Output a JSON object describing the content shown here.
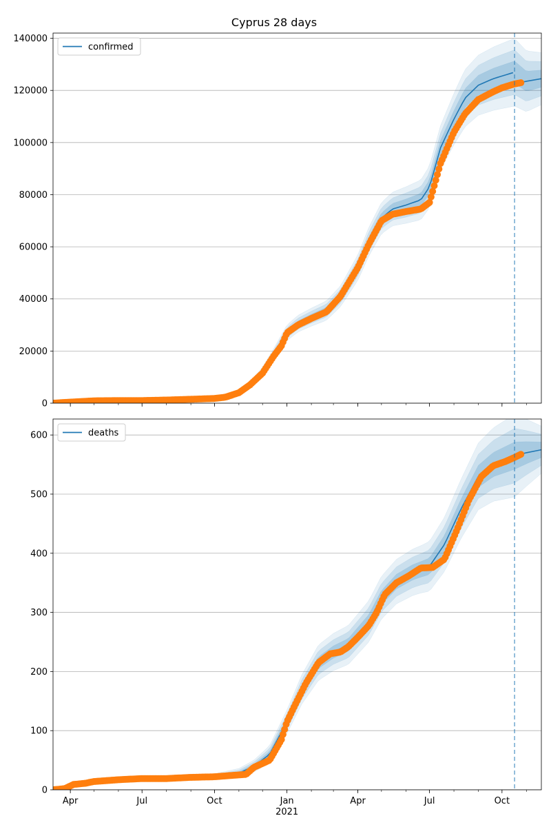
{
  "title": "Cyprus 28 days",
  "colors": {
    "model": "#1f77b4",
    "observed": "#ff7f0e",
    "band": "#1f77b4",
    "grid": "#b0b0b0"
  },
  "x_axis": {
    "start": "2020-03-10",
    "end": "2021-11-20",
    "forecast_start": "2021-10-17",
    "ticks": [
      {
        "date": "2020-04-01",
        "label": "Apr"
      },
      {
        "date": "2020-07-01",
        "label": "Jul"
      },
      {
        "date": "2020-10-01",
        "label": "Oct"
      },
      {
        "date": "2021-01-01",
        "label": "Jan"
      },
      {
        "date": "2021-04-01",
        "label": "Apr"
      },
      {
        "date": "2021-07-01",
        "label": "Jul"
      },
      {
        "date": "2021-10-01",
        "label": "Oct"
      }
    ],
    "year_label": {
      "date": "2021-01-01",
      "label": "2021"
    }
  },
  "chart_data": [
    {
      "type": "line",
      "legend_entry": "confirmed",
      "legend_position": "top-left",
      "grid": true,
      "ylim": [
        0,
        142000
      ],
      "yticks": [
        0,
        20000,
        40000,
        60000,
        80000,
        100000,
        120000,
        140000
      ],
      "model": [
        [
          "2020-03-10",
          0
        ],
        [
          "2020-06-01",
          900
        ],
        [
          "2020-09-01",
          1500
        ],
        [
          "2020-10-15",
          2200
        ],
        [
          "2020-11-01",
          4000
        ],
        [
          "2020-11-15",
          7000
        ],
        [
          "2020-12-01",
          12000
        ],
        [
          "2020-12-15",
          18500
        ],
        [
          "2021-01-01",
          27000
        ],
        [
          "2021-01-15",
          30500
        ],
        [
          "2021-02-01",
          33000
        ],
        [
          "2021-02-20",
          35500
        ],
        [
          "2021-03-10",
          41000
        ],
        [
          "2021-04-01",
          52000
        ],
        [
          "2021-04-15",
          62000
        ],
        [
          "2021-05-01",
          71000
        ],
        [
          "2021-05-15",
          74500
        ],
        [
          "2021-06-01",
          76000
        ],
        [
          "2021-06-20",
          78000
        ],
        [
          "2021-07-01",
          83000
        ],
        [
          "2021-07-15",
          98000
        ],
        [
          "2021-08-01",
          109000
        ],
        [
          "2021-08-15",
          117000
        ],
        [
          "2021-09-01",
          122000
        ],
        [
          "2021-09-20",
          124500
        ],
        [
          "2021-10-17",
          127000
        ]
      ],
      "forecast": [
        [
          "2021-10-17",
          122500
        ],
        [
          "2021-11-01",
          123500
        ],
        [
          "2021-11-20",
          124500
        ]
      ],
      "observed": [
        [
          "2020-03-10",
          0
        ],
        [
          "2020-04-01",
          400
        ],
        [
          "2020-05-01",
          900
        ],
        [
          "2020-06-01",
          1000
        ],
        [
          "2020-07-01",
          1000
        ],
        [
          "2020-08-01",
          1200
        ],
        [
          "2020-09-01",
          1500
        ],
        [
          "2020-10-01",
          1800
        ],
        [
          "2020-10-15",
          2300
        ],
        [
          "2020-11-01",
          4000
        ],
        [
          "2020-11-15",
          7000
        ],
        [
          "2020-12-01",
          11500
        ],
        [
          "2020-12-15",
          18000
        ],
        [
          "2020-12-25",
          22000
        ],
        [
          "2021-01-01",
          27000
        ],
        [
          "2021-01-15",
          30000
        ],
        [
          "2021-02-01",
          32500
        ],
        [
          "2021-02-20",
          35000
        ],
        [
          "2021-03-10",
          41000
        ],
        [
          "2021-04-01",
          52000
        ],
        [
          "2021-04-15",
          61000
        ],
        [
          "2021-05-01",
          70000
        ],
        [
          "2021-05-15",
          72500
        ],
        [
          "2021-06-01",
          73500
        ],
        [
          "2021-06-20",
          74500
        ],
        [
          "2021-07-01",
          77000
        ],
        [
          "2021-07-15",
          92000
        ],
        [
          "2021-08-01",
          104000
        ],
        [
          "2021-08-15",
          111000
        ],
        [
          "2021-09-01",
          116500
        ],
        [
          "2021-09-20",
          119500
        ],
        [
          "2021-10-01",
          121000
        ],
        [
          "2021-10-17",
          122500
        ],
        [
          "2021-10-26",
          123000
        ]
      ],
      "band_half_widths": [
        [
          "2020-03-10",
          0
        ],
        [
          "2020-09-01",
          300
        ],
        [
          "2020-11-01",
          900
        ],
        [
          "2020-12-01",
          1800
        ],
        [
          "2021-01-01",
          3000
        ],
        [
          "2021-03-10",
          4000
        ],
        [
          "2021-04-15",
          5500
        ],
        [
          "2021-06-01",
          7000
        ],
        [
          "2021-07-15",
          8500
        ],
        [
          "2021-08-15",
          11000
        ],
        [
          "2021-10-17",
          13000
        ],
        [
          "2021-11-20",
          10000
        ]
      ]
    },
    {
      "type": "line",
      "legend_entry": "deaths",
      "legend_position": "top-left",
      "grid": true,
      "ylim": [
        0,
        627
      ],
      "yticks": [
        0,
        100,
        200,
        300,
        400,
        500,
        600
      ],
      "model": [
        [
          "2020-03-10",
          0
        ],
        [
          "2020-04-01",
          8
        ],
        [
          "2020-05-01",
          15
        ],
        [
          "2020-07-01",
          18
        ],
        [
          "2020-10-01",
          22
        ],
        [
          "2020-11-01",
          28
        ],
        [
          "2020-11-20",
          40
        ],
        [
          "2020-12-10",
          60
        ],
        [
          "2021-01-01",
          115
        ],
        [
          "2021-01-20",
          170
        ],
        [
          "2021-02-10",
          215
        ],
        [
          "2021-03-01",
          233
        ],
        [
          "2021-03-20",
          245
        ],
        [
          "2021-04-15",
          285
        ],
        [
          "2021-05-01",
          325
        ],
        [
          "2021-05-20",
          352
        ],
        [
          "2021-06-10",
          368
        ],
        [
          "2021-07-01",
          378
        ],
        [
          "2021-07-20",
          415
        ],
        [
          "2021-08-10",
          475
        ],
        [
          "2021-09-01",
          530
        ],
        [
          "2021-09-20",
          550
        ],
        [
          "2021-10-17",
          565
        ]
      ],
      "forecast": [
        [
          "2021-10-17",
          565
        ],
        [
          "2021-11-01",
          570
        ],
        [
          "2021-11-20",
          575
        ]
      ],
      "observed": [
        [
          "2020-03-10",
          0
        ],
        [
          "2020-03-25",
          2
        ],
        [
          "2020-04-05",
          9
        ],
        [
          "2020-04-20",
          11
        ],
        [
          "2020-05-01",
          14
        ],
        [
          "2020-06-01",
          17
        ],
        [
          "2020-07-01",
          19
        ],
        [
          "2020-08-01",
          19
        ],
        [
          "2020-09-01",
          21
        ],
        [
          "2020-10-01",
          22
        ],
        [
          "2020-10-20",
          24
        ],
        [
          "2020-11-10",
          26
        ],
        [
          "2020-11-20",
          38
        ],
        [
          "2020-12-10",
          50
        ],
        [
          "2020-12-25",
          85
        ],
        [
          "2021-01-01",
          115
        ],
        [
          "2021-01-10",
          140
        ],
        [
          "2021-01-25",
          180
        ],
        [
          "2021-02-10",
          215
        ],
        [
          "2021-02-25",
          230
        ],
        [
          "2021-03-10",
          233
        ],
        [
          "2021-03-20",
          242
        ],
        [
          "2021-04-01",
          258
        ],
        [
          "2021-04-15",
          278
        ],
        [
          "2021-04-25",
          300
        ],
        [
          "2021-05-05",
          330
        ],
        [
          "2021-05-20",
          350
        ],
        [
          "2021-06-05",
          362
        ],
        [
          "2021-06-20",
          375
        ],
        [
          "2021-07-05",
          376
        ],
        [
          "2021-07-20",
          390
        ],
        [
          "2021-08-05",
          440
        ],
        [
          "2021-08-20",
          490
        ],
        [
          "2021-09-05",
          530
        ],
        [
          "2021-09-20",
          548
        ],
        [
          "2021-10-05",
          555
        ],
        [
          "2021-10-17",
          562
        ],
        [
          "2021-10-26",
          568
        ]
      ],
      "band_half_widths": [
        [
          "2020-03-10",
          1
        ],
        [
          "2020-10-01",
          5
        ],
        [
          "2020-11-20",
          10
        ],
        [
          "2021-01-01",
          20
        ],
        [
          "2021-02-10",
          30
        ],
        [
          "2021-04-15",
          35
        ],
        [
          "2021-06-20",
          40
        ],
        [
          "2021-08-10",
          50
        ],
        [
          "2021-10-17",
          70
        ],
        [
          "2021-11-20",
          40
        ]
      ]
    }
  ]
}
